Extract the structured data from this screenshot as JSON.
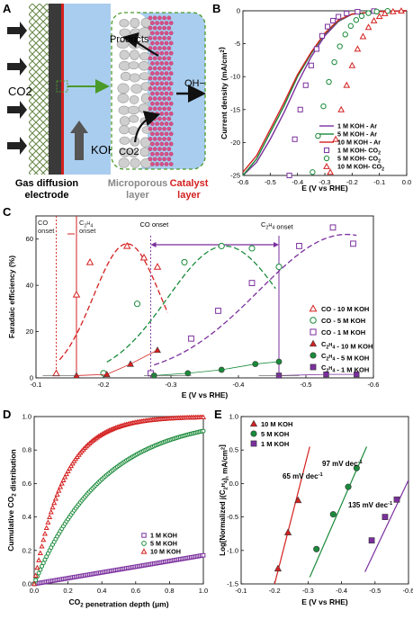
{
  "panel_letters": {
    "a": "A",
    "b": "B",
    "c": "C",
    "d": "D",
    "e": "E"
  },
  "schematic": {
    "co2_label": "CO2",
    "koh_label": "KOH",
    "products_label": "Products",
    "co2_inner_label": "CO2",
    "oh_label": "OH−",
    "gde_label_line1": "Gas diffusion",
    "gde_label_line2": "electrode",
    "micro_label_line1": "Microporous",
    "micro_label_line2": "layer",
    "catalyst_label_line1": "Catalyst",
    "catalyst_label_line2": "layer"
  },
  "colors": {
    "koh_1m": "#7b2f9e",
    "koh_5m": "#1a8a3a",
    "koh_10m": "#d42020",
    "electrolyte": "#a9cdee",
    "gas_mesh": "#6a8a4a",
    "catalyst": "#d84e86"
  },
  "annotations": {
    "co_onset_left": "CO\nonset",
    "c2h4_onset_left": "C2H4\nonset",
    "co_onset_mid": "CO onset",
    "c2h4_onset_right": "C2H4 onset",
    "tafel_10m": "65 mV dec-1",
    "tafel_5m": "97 mV dec-1",
    "tafel_1m": "135 mV dec-1"
  },
  "chart_data": [
    {
      "panel": "B",
      "type": "line",
      "xlabel": "E (V vs RHE)",
      "ylabel": "Current density (mA/cm2)",
      "xlim": [
        -0.6,
        0.0
      ],
      "ylim": [
        -25,
        0
      ],
      "xticks": [
        "-0.6",
        "-0.5",
        "-0.4",
        "-0.3",
        "-0.2",
        "-0.1",
        "0.0"
      ],
      "yticks": [
        "0",
        "-5",
        "-10",
        "-15",
        "-20",
        "-25"
      ],
      "legend_position": "bottom-right",
      "series": [
        {
          "name": "1 M KOH - Ar",
          "style": "line",
          "color": "#7b2f9e",
          "x": [
            -0.6,
            -0.55,
            -0.5,
            -0.45,
            -0.4,
            -0.35,
            -0.3,
            -0.25,
            -0.2,
            -0.1,
            0.0
          ],
          "y": [
            -25,
            -23,
            -19.5,
            -15.5,
            -11,
            -7,
            -3.8,
            -1.6,
            -0.5,
            -0.1,
            0
          ]
        },
        {
          "name": "5 M KOH - Ar",
          "style": "line",
          "color": "#1a8a3a",
          "x": [
            -0.6,
            -0.55,
            -0.5,
            -0.45,
            -0.4,
            -0.35,
            -0.3,
            -0.25,
            -0.2,
            -0.1,
            0.0
          ],
          "y": [
            -25,
            -22.5,
            -18.5,
            -14.5,
            -10,
            -6.5,
            -3.5,
            -1.5,
            -0.5,
            -0.1,
            0
          ]
        },
        {
          "name": "10 M KOH - Ar",
          "style": "line",
          "color": "#d42020",
          "x": [
            -0.6,
            -0.55,
            -0.5,
            -0.45,
            -0.4,
            -0.35,
            -0.3,
            -0.25,
            -0.2,
            -0.1,
            0.0
          ],
          "y": [
            -24.5,
            -22,
            -18,
            -14,
            -9.7,
            -6.3,
            -3.4,
            -1.4,
            -0.5,
            -0.1,
            0
          ]
        },
        {
          "name": "1 M KOH- CO2",
          "style": "square",
          "color": "#7b2f9e",
          "x": [
            -0.43,
            -0.41,
            -0.39,
            -0.37,
            -0.35,
            -0.33,
            -0.31,
            -0.29,
            -0.27,
            -0.25,
            -0.22,
            -0.18,
            -0.12
          ],
          "y": [
            -25,
            -19.5,
            -15,
            -11.3,
            -8.3,
            -5.8,
            -3.8,
            -2.4,
            -1.5,
            -0.9,
            -0.4,
            -0.15,
            -0.05
          ]
        },
        {
          "name": "5 M KOH- CO2",
          "style": "circle",
          "color": "#1a8a3a",
          "x": [
            -0.345,
            -0.325,
            -0.305,
            -0.285,
            -0.265,
            -0.245,
            -0.225,
            -0.205,
            -0.185,
            -0.165,
            -0.14,
            -0.11,
            -0.07
          ],
          "y": [
            -24.5,
            -19,
            -14.5,
            -10.8,
            -7.8,
            -5.4,
            -3.6,
            -2.3,
            -1.4,
            -0.8,
            -0.35,
            -0.12,
            -0.03
          ]
        },
        {
          "name": "10 M KOH- CO2",
          "style": "triangle",
          "color": "#d42020",
          "x": [
            -0.28,
            -0.26,
            -0.24,
            -0.22,
            -0.2,
            -0.18,
            -0.16,
            -0.14,
            -0.12,
            -0.1,
            -0.08,
            -0.05,
            -0.02
          ],
          "y": [
            -24.5,
            -19.5,
            -15,
            -11.3,
            -8.3,
            -5.8,
            -3.9,
            -2.5,
            -1.5,
            -0.85,
            -0.4,
            -0.12,
            -0.02
          ]
        }
      ]
    },
    {
      "panel": "C",
      "type": "scatter",
      "xlabel": "E (V vs RHE)",
      "ylabel": "Faradaic efficiency (%)",
      "xlim": [
        -0.1,
        -0.6
      ],
      "ylim": [
        0,
        70
      ],
      "xticks": [
        "-0.1",
        "-0.2",
        "-0.3",
        "-0.4",
        "-0.5",
        "-0.6"
      ],
      "yticks": [
        "0",
        "20",
        "40",
        "60"
      ],
      "legend_position": "right",
      "series": [
        {
          "name": "CO - 10 M KOH",
          "marker": "triangle-open",
          "color": "#d42020",
          "x": [
            -0.13,
            -0.16,
            -0.18,
            -0.235,
            -0.26,
            -0.28
          ],
          "y": [
            2,
            36,
            50,
            57,
            52,
            48
          ]
        },
        {
          "name": "CO - 5 M KOH",
          "marker": "circle-open",
          "color": "#1a8a3a",
          "x": [
            -0.2,
            -0.25,
            -0.32,
            -0.375,
            -0.42,
            -0.46
          ],
          "y": [
            2,
            32,
            50,
            57,
            56,
            48
          ]
        },
        {
          "name": "CO - 1 M KOH",
          "marker": "square-open",
          "color": "#7b2f9e",
          "x": [
            -0.27,
            -0.33,
            -0.37,
            -0.42,
            -0.49,
            -0.54,
            -0.57
          ],
          "y": [
            2,
            17,
            29,
            41,
            57,
            65,
            58
          ]
        },
        {
          "name": "C2H4 - 10 M KOH",
          "marker": "triangle-filled",
          "color": "#d42020",
          "x": [
            -0.16,
            -0.205,
            -0.24,
            -0.28
          ],
          "y": [
            1,
            1.5,
            6,
            12
          ]
        },
        {
          "name": "C2H4 - 5 M KOH",
          "marker": "circle-filled",
          "color": "#1a8a3a",
          "x": [
            -0.275,
            -0.325,
            -0.375,
            -0.425,
            -0.46
          ],
          "y": [
            1,
            2,
            3.5,
            6,
            7
          ]
        },
        {
          "name": "C2H4 - 1 M KOH",
          "marker": "square-filled",
          "color": "#7b2f9e",
          "x": [
            -0.46,
            -0.53,
            -0.575
          ],
          "y": [
            1,
            1.5,
            1.5
          ]
        }
      ]
    },
    {
      "panel": "D",
      "type": "scatter",
      "xlabel": "CO2 penetration depth (μm)",
      "ylabel": "Cumulative CO2 distribution",
      "xlim": [
        0,
        1.0
      ],
      "ylim": [
        0,
        1.0
      ],
      "xticks": [
        "0.0",
        "0.2",
        "0.4",
        "0.6",
        "0.8",
        "1.0"
      ],
      "yticks": [
        "0.0",
        "0.2",
        "0.4",
        "0.6",
        "0.8",
        "1.0"
      ],
      "legend_position": "bottom-right",
      "series": [
        {
          "name": "1 M KOH",
          "marker": "square-open",
          "color": "#7b2f9e",
          "decay_constant": 0.19
        },
        {
          "name": "5 M KOH",
          "marker": "circle-open",
          "color": "#1a8a3a",
          "decay_constant": 2.45
        },
        {
          "name": "10 M KOH",
          "marker": "triangle-open",
          "color": "#d42020",
          "decay_constant": 5.6
        }
      ]
    },
    {
      "panel": "E",
      "type": "line",
      "xlabel": "E (V vs RHE)",
      "ylabel": "Log[Normalized j(C2H4), mA/cm2]",
      "xlim": [
        -0.1,
        -0.6
      ],
      "ylim": [
        -1.5,
        1.0
      ],
      "xticks": [
        "-0.1",
        "-0.2",
        "-0.3",
        "-0.4",
        "-0.5",
        "-0.6"
      ],
      "yticks": [
        "1.0",
        "0.5",
        "0.0",
        "-0.5",
        "-1.0",
        "-1.5"
      ],
      "legend_position": "top-left",
      "series": [
        {
          "name": "10 M KOH",
          "marker": "triangle-filled",
          "color": "#d42020",
          "x": [
            -0.21,
            -0.24,
            -0.27
          ],
          "y": [
            -1.27,
            -0.73,
            -0.25
          ],
          "fit_x": [
            -0.2,
            -0.305
          ],
          "fit_y": [
            -1.5,
            0.55
          ]
        },
        {
          "name": "5 M KOH",
          "marker": "circle-filled",
          "color": "#1a8a3a",
          "x": [
            -0.325,
            -0.375,
            -0.42,
            -0.445
          ],
          "y": [
            -0.98,
            -0.46,
            -0.05,
            0.23
          ],
          "fit_x": [
            -0.305,
            -0.475
          ],
          "fit_y": [
            -1.4,
            0.55
          ]
        },
        {
          "name": "1 M KOH",
          "marker": "square-filled",
          "color": "#7b2f9e",
          "x": [
            -0.49,
            -0.53,
            -0.565
          ],
          "y": [
            -0.85,
            -0.5,
            -0.24
          ],
          "fit_x": [
            -0.47,
            -0.6
          ],
          "fit_y": [
            -1.32,
            0.05
          ]
        }
      ]
    }
  ]
}
